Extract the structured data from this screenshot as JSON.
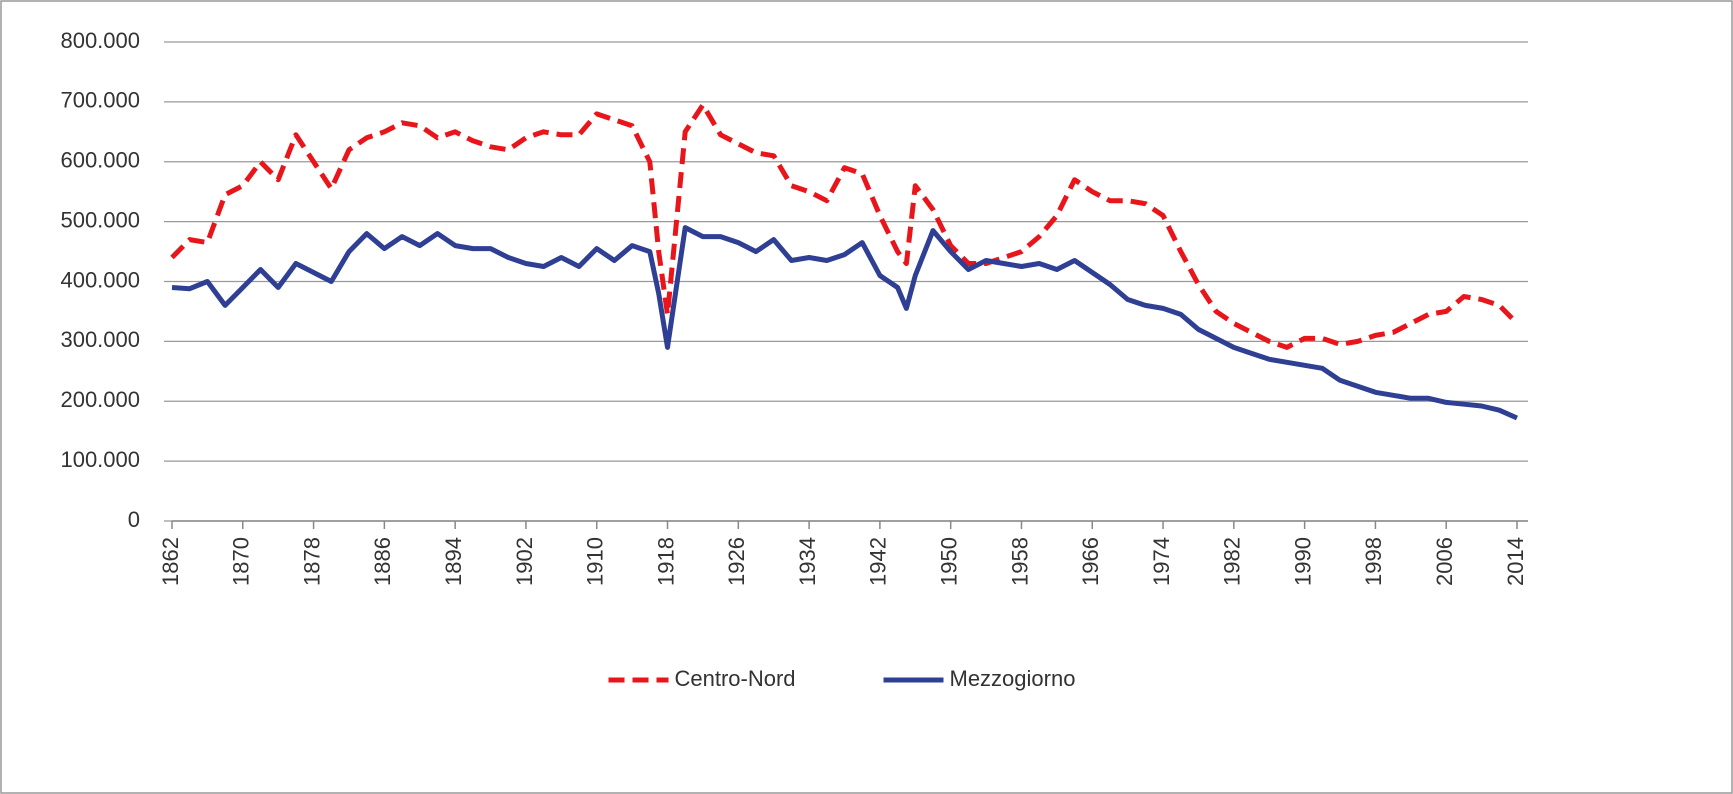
{
  "chart_data": {
    "type": "line",
    "x": [
      1862,
      1864,
      1866,
      1868,
      1870,
      1872,
      1874,
      1876,
      1878,
      1880,
      1882,
      1884,
      1886,
      1888,
      1890,
      1892,
      1894,
      1896,
      1898,
      1900,
      1902,
      1904,
      1906,
      1908,
      1910,
      1912,
      1914,
      1916,
      1917,
      1918,
      1920,
      1922,
      1924,
      1926,
      1928,
      1930,
      1932,
      1934,
      1936,
      1938,
      1940,
      1942,
      1944,
      1945,
      1946,
      1948,
      1950,
      1952,
      1954,
      1956,
      1958,
      1960,
      1962,
      1964,
      1966,
      1968,
      1970,
      1972,
      1974,
      1976,
      1978,
      1980,
      1982,
      1984,
      1986,
      1988,
      1990,
      1992,
      1994,
      1996,
      1998,
      2000,
      2002,
      2004,
      2006,
      2008,
      2010,
      2012,
      2014
    ],
    "series": [
      {
        "name": "Centro-Nord",
        "color": "#e8151b",
        "line_style": "dashed",
        "values": [
          440000,
          470000,
          465000,
          545000,
          560000,
          600000,
          570000,
          645000,
          600000,
          555000,
          620000,
          640000,
          650000,
          665000,
          660000,
          640000,
          650000,
          635000,
          625000,
          620000,
          640000,
          650000,
          645000,
          645000,
          680000,
          670000,
          660000,
          600000,
          450000,
          345000,
          650000,
          695000,
          645000,
          630000,
          615000,
          610000,
          560000,
          550000,
          535000,
          590000,
          580000,
          510000,
          450000,
          430000,
          560000,
          520000,
          460000,
          430000,
          430000,
          440000,
          450000,
          475000,
          510000,
          570000,
          550000,
          535000,
          535000,
          530000,
          510000,
          450000,
          395000,
          350000,
          330000,
          315000,
          300000,
          290000,
          305000,
          305000,
          295000,
          300000,
          310000,
          315000,
          330000,
          345000,
          350000,
          375000,
          370000,
          360000,
          330000
        ]
      },
      {
        "name": "Mezzogiorno",
        "color": "#2e3f94",
        "line_style": "solid",
        "values": [
          390000,
          388000,
          400000,
          360000,
          390000,
          420000,
          390000,
          430000,
          415000,
          400000,
          450000,
          480000,
          455000,
          475000,
          460000,
          480000,
          460000,
          455000,
          455000,
          440000,
          430000,
          425000,
          440000,
          425000,
          455000,
          435000,
          460000,
          450000,
          380000,
          290000,
          490000,
          475000,
          475000,
          465000,
          450000,
          470000,
          435000,
          440000,
          435000,
          445000,
          465000,
          410000,
          390000,
          355000,
          410000,
          485000,
          450000,
          420000,
          435000,
          430000,
          425000,
          430000,
          420000,
          435000,
          415000,
          395000,
          370000,
          360000,
          355000,
          345000,
          320000,
          305000,
          290000,
          280000,
          270000,
          265000,
          260000,
          255000,
          235000,
          225000,
          215000,
          210000,
          205000,
          205000,
          198000,
          195000,
          192000,
          185000,
          172000
        ]
      }
    ],
    "xlim": [
      1862,
      2014
    ],
    "xticks": [
      1862,
      1870,
      1878,
      1886,
      1894,
      1902,
      1910,
      1918,
      1926,
      1934,
      1942,
      1950,
      1958,
      1966,
      1974,
      1982,
      1990,
      1998,
      2006,
      2014
    ],
    "ylim": [
      0,
      800000
    ],
    "yticks": [
      0,
      {
        "value": 100000,
        "label": "100.000"
      },
      {
        "value": 200000,
        "label": "200.000"
      },
      {
        "value": 300000,
        "label": "300.000"
      },
      {
        "value": 400000,
        "label": "400.000"
      },
      {
        "value": 500000,
        "label": "500.000"
      },
      {
        "value": 600000,
        "label": "600.000"
      },
      {
        "value": 700000,
        "label": "700.000"
      },
      {
        "value": 800000,
        "label": "800.000"
      }
    ],
    "grid": true,
    "legend": "bottom"
  }
}
